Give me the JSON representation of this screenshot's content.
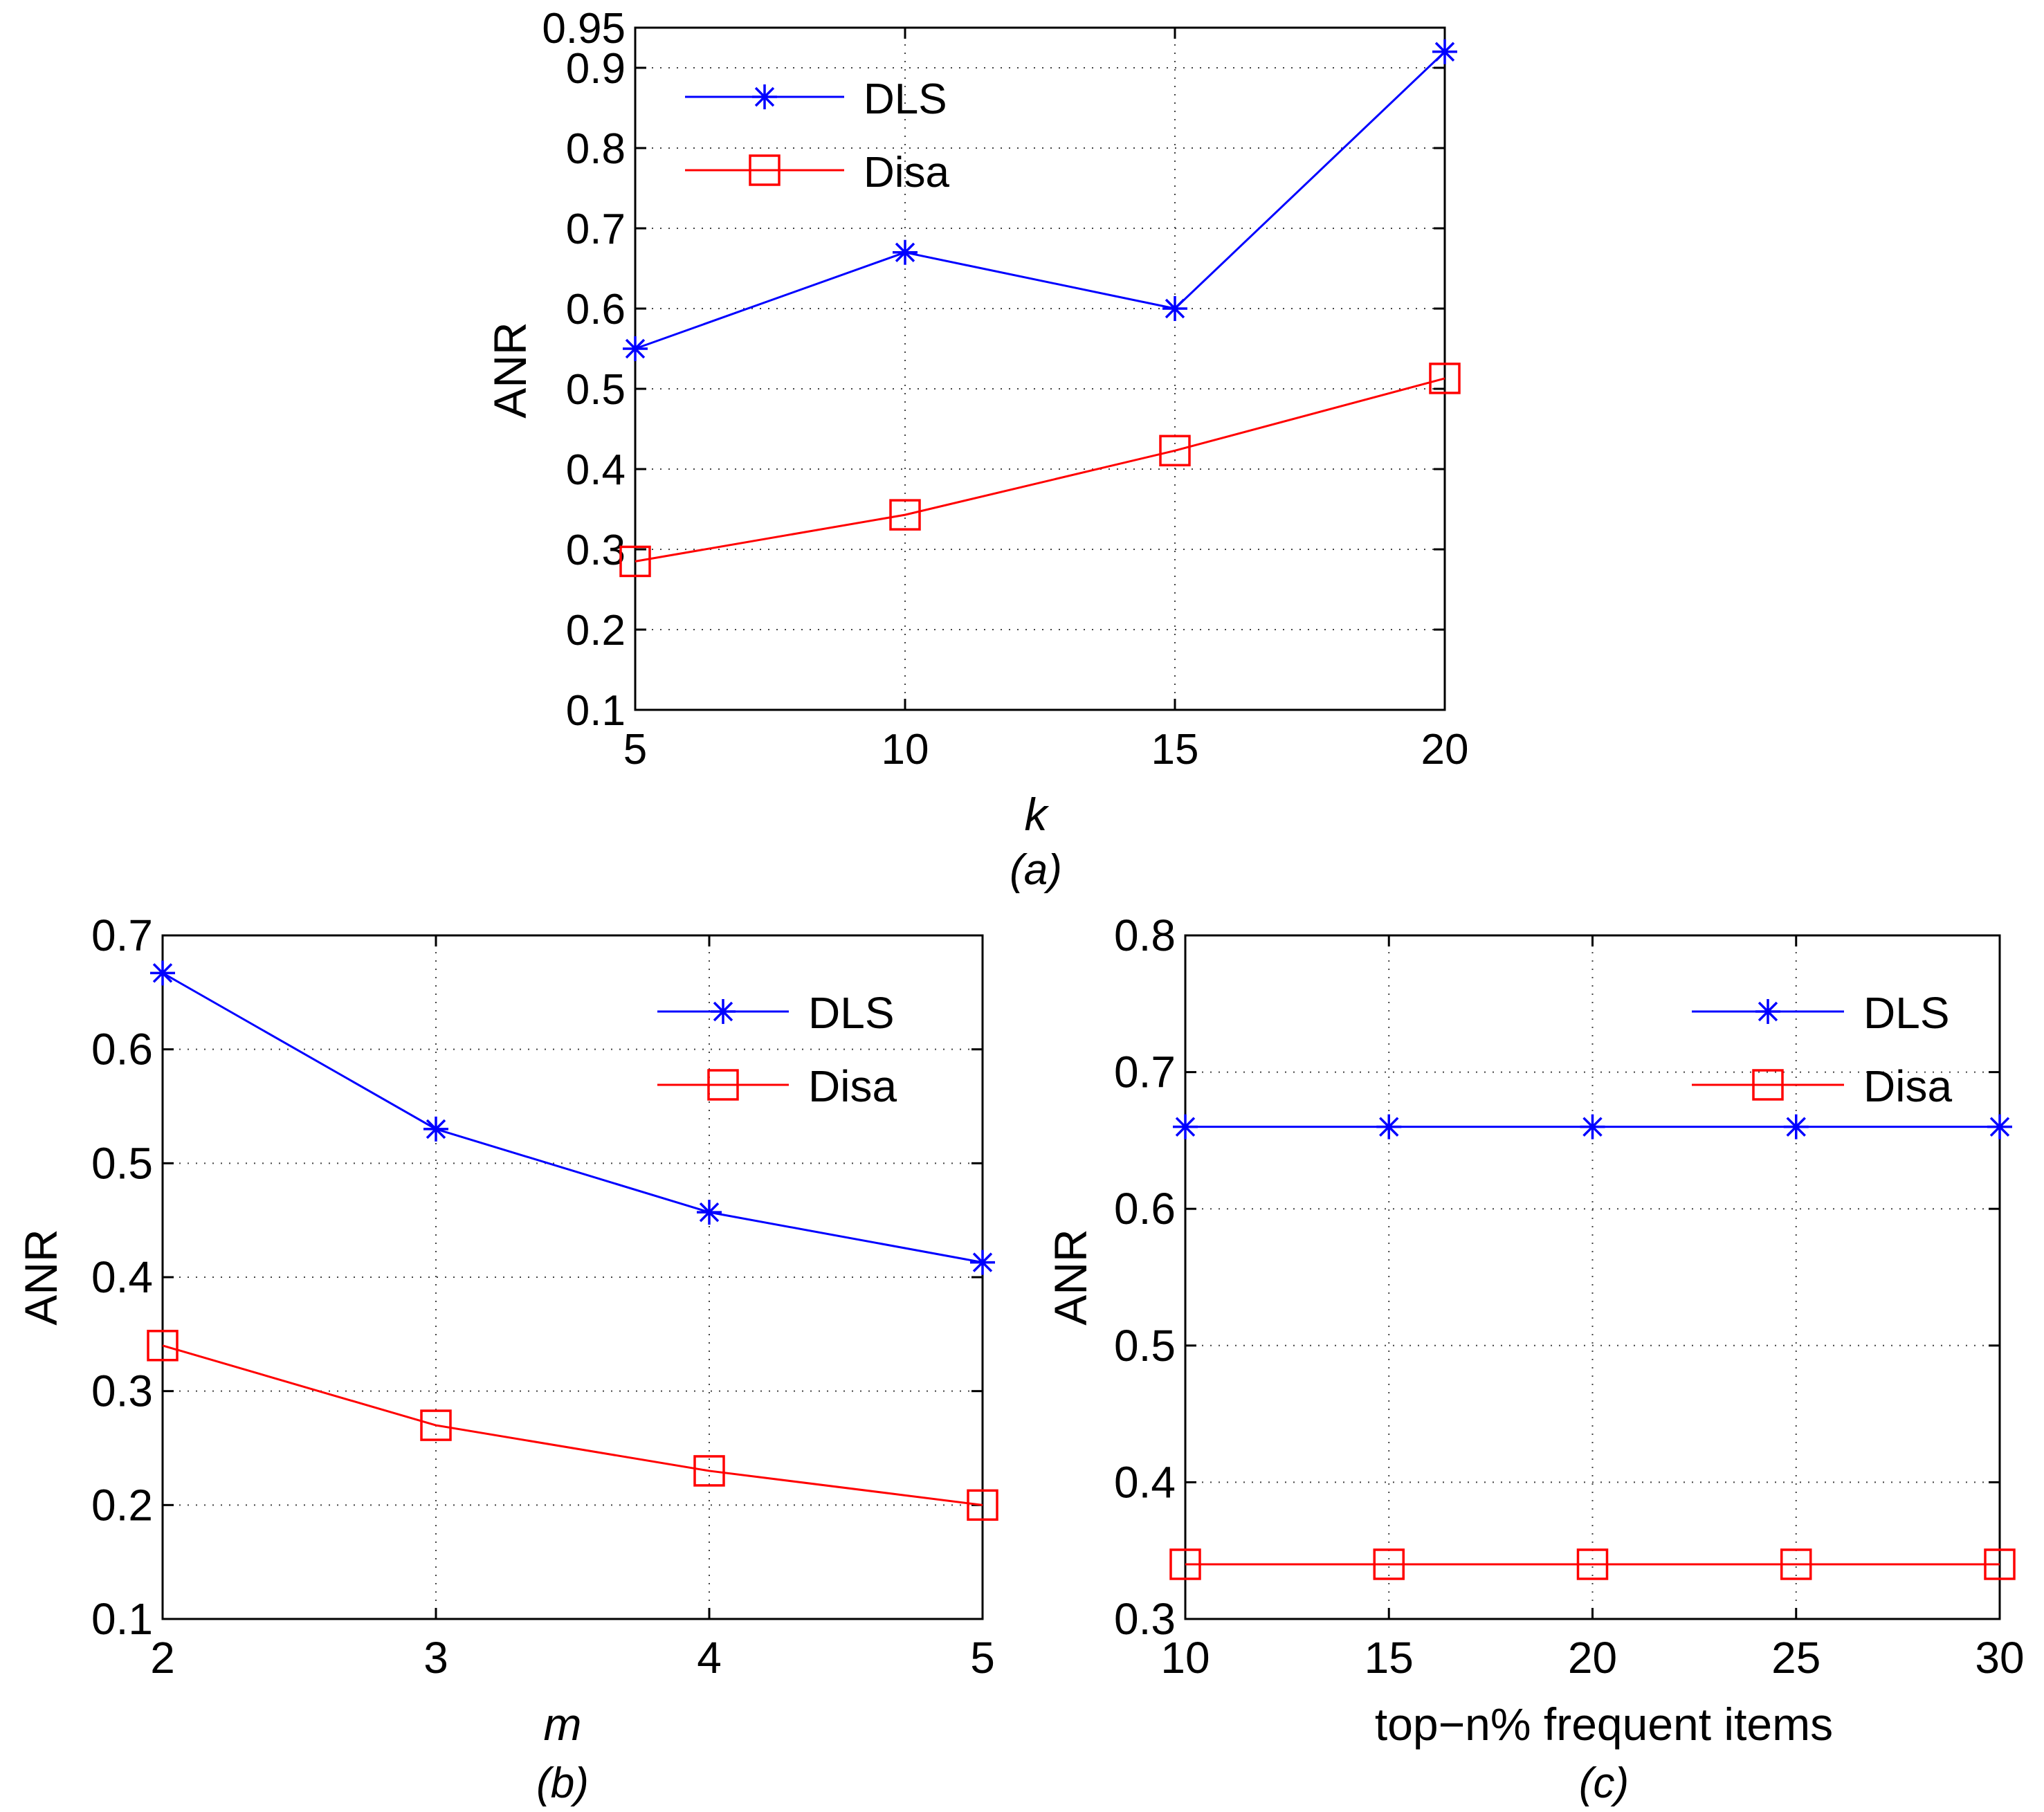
{
  "chart_data": [
    {
      "id": "a",
      "type": "line",
      "caption": "(a)",
      "xlabel": "k",
      "ylabel": "ANR",
      "x": [
        5,
        10,
        15,
        20
      ],
      "xlim": [
        5,
        20
      ],
      "ylim": [
        0.1,
        0.95
      ],
      "xticks": [
        "5",
        "10",
        "15",
        "20"
      ],
      "yticks": [
        "0.1",
        "0.2",
        "0.3",
        "0.4",
        "0.5",
        "0.6",
        "0.7",
        "0.8",
        "0.9",
        "0.95"
      ],
      "grid": true,
      "legend_position": "top-left",
      "series": [
        {
          "name": "DLS",
          "color": "#0000ff",
          "marker": "asterisk",
          "values": [
            0.55,
            0.67,
            0.6,
            0.92
          ]
        },
        {
          "name": "Disa",
          "color": "#ff0000",
          "marker": "square",
          "values": [
            0.285,
            0.343,
            0.423,
            0.513
          ]
        }
      ]
    },
    {
      "id": "b",
      "type": "line",
      "caption": "(b)",
      "xlabel": "m",
      "ylabel": "ANR",
      "x": [
        2,
        3,
        4,
        5
      ],
      "xlim": [
        2,
        5
      ],
      "ylim": [
        0.1,
        0.7
      ],
      "xticks": [
        "2",
        "3",
        "4",
        "5"
      ],
      "yticks": [
        "0.1",
        "0.2",
        "0.3",
        "0.4",
        "0.5",
        "0.6",
        "0.7"
      ],
      "grid": true,
      "legend_position": "top-right",
      "series": [
        {
          "name": "DLS",
          "color": "#0000ff",
          "marker": "asterisk",
          "values": [
            0.667,
            0.53,
            0.457,
            0.413
          ]
        },
        {
          "name": "Disa",
          "color": "#ff0000",
          "marker": "square",
          "values": [
            0.34,
            0.27,
            0.23,
            0.2
          ]
        }
      ]
    },
    {
      "id": "c",
      "type": "line",
      "caption": "(c)",
      "xlabel": "top−n% frequent items",
      "ylabel": "ANR",
      "x": [
        10,
        15,
        20,
        25,
        30
      ],
      "xlim": [
        10,
        30
      ],
      "ylim": [
        0.3,
        0.8
      ],
      "xticks": [
        "10",
        "15",
        "20",
        "25",
        "30"
      ],
      "yticks": [
        "0.3",
        "0.4",
        "0.5",
        "0.6",
        "0.7",
        "0.8"
      ],
      "grid": true,
      "legend_position": "top-right",
      "series": [
        {
          "name": "DLS",
          "color": "#0000ff",
          "marker": "asterisk",
          "values": [
            0.66,
            0.66,
            0.66,
            0.66,
            0.66
          ]
        },
        {
          "name": "Disa",
          "color": "#ff0000",
          "marker": "square",
          "values": [
            0.34,
            0.34,
            0.34,
            0.34,
            0.34
          ]
        }
      ]
    }
  ]
}
